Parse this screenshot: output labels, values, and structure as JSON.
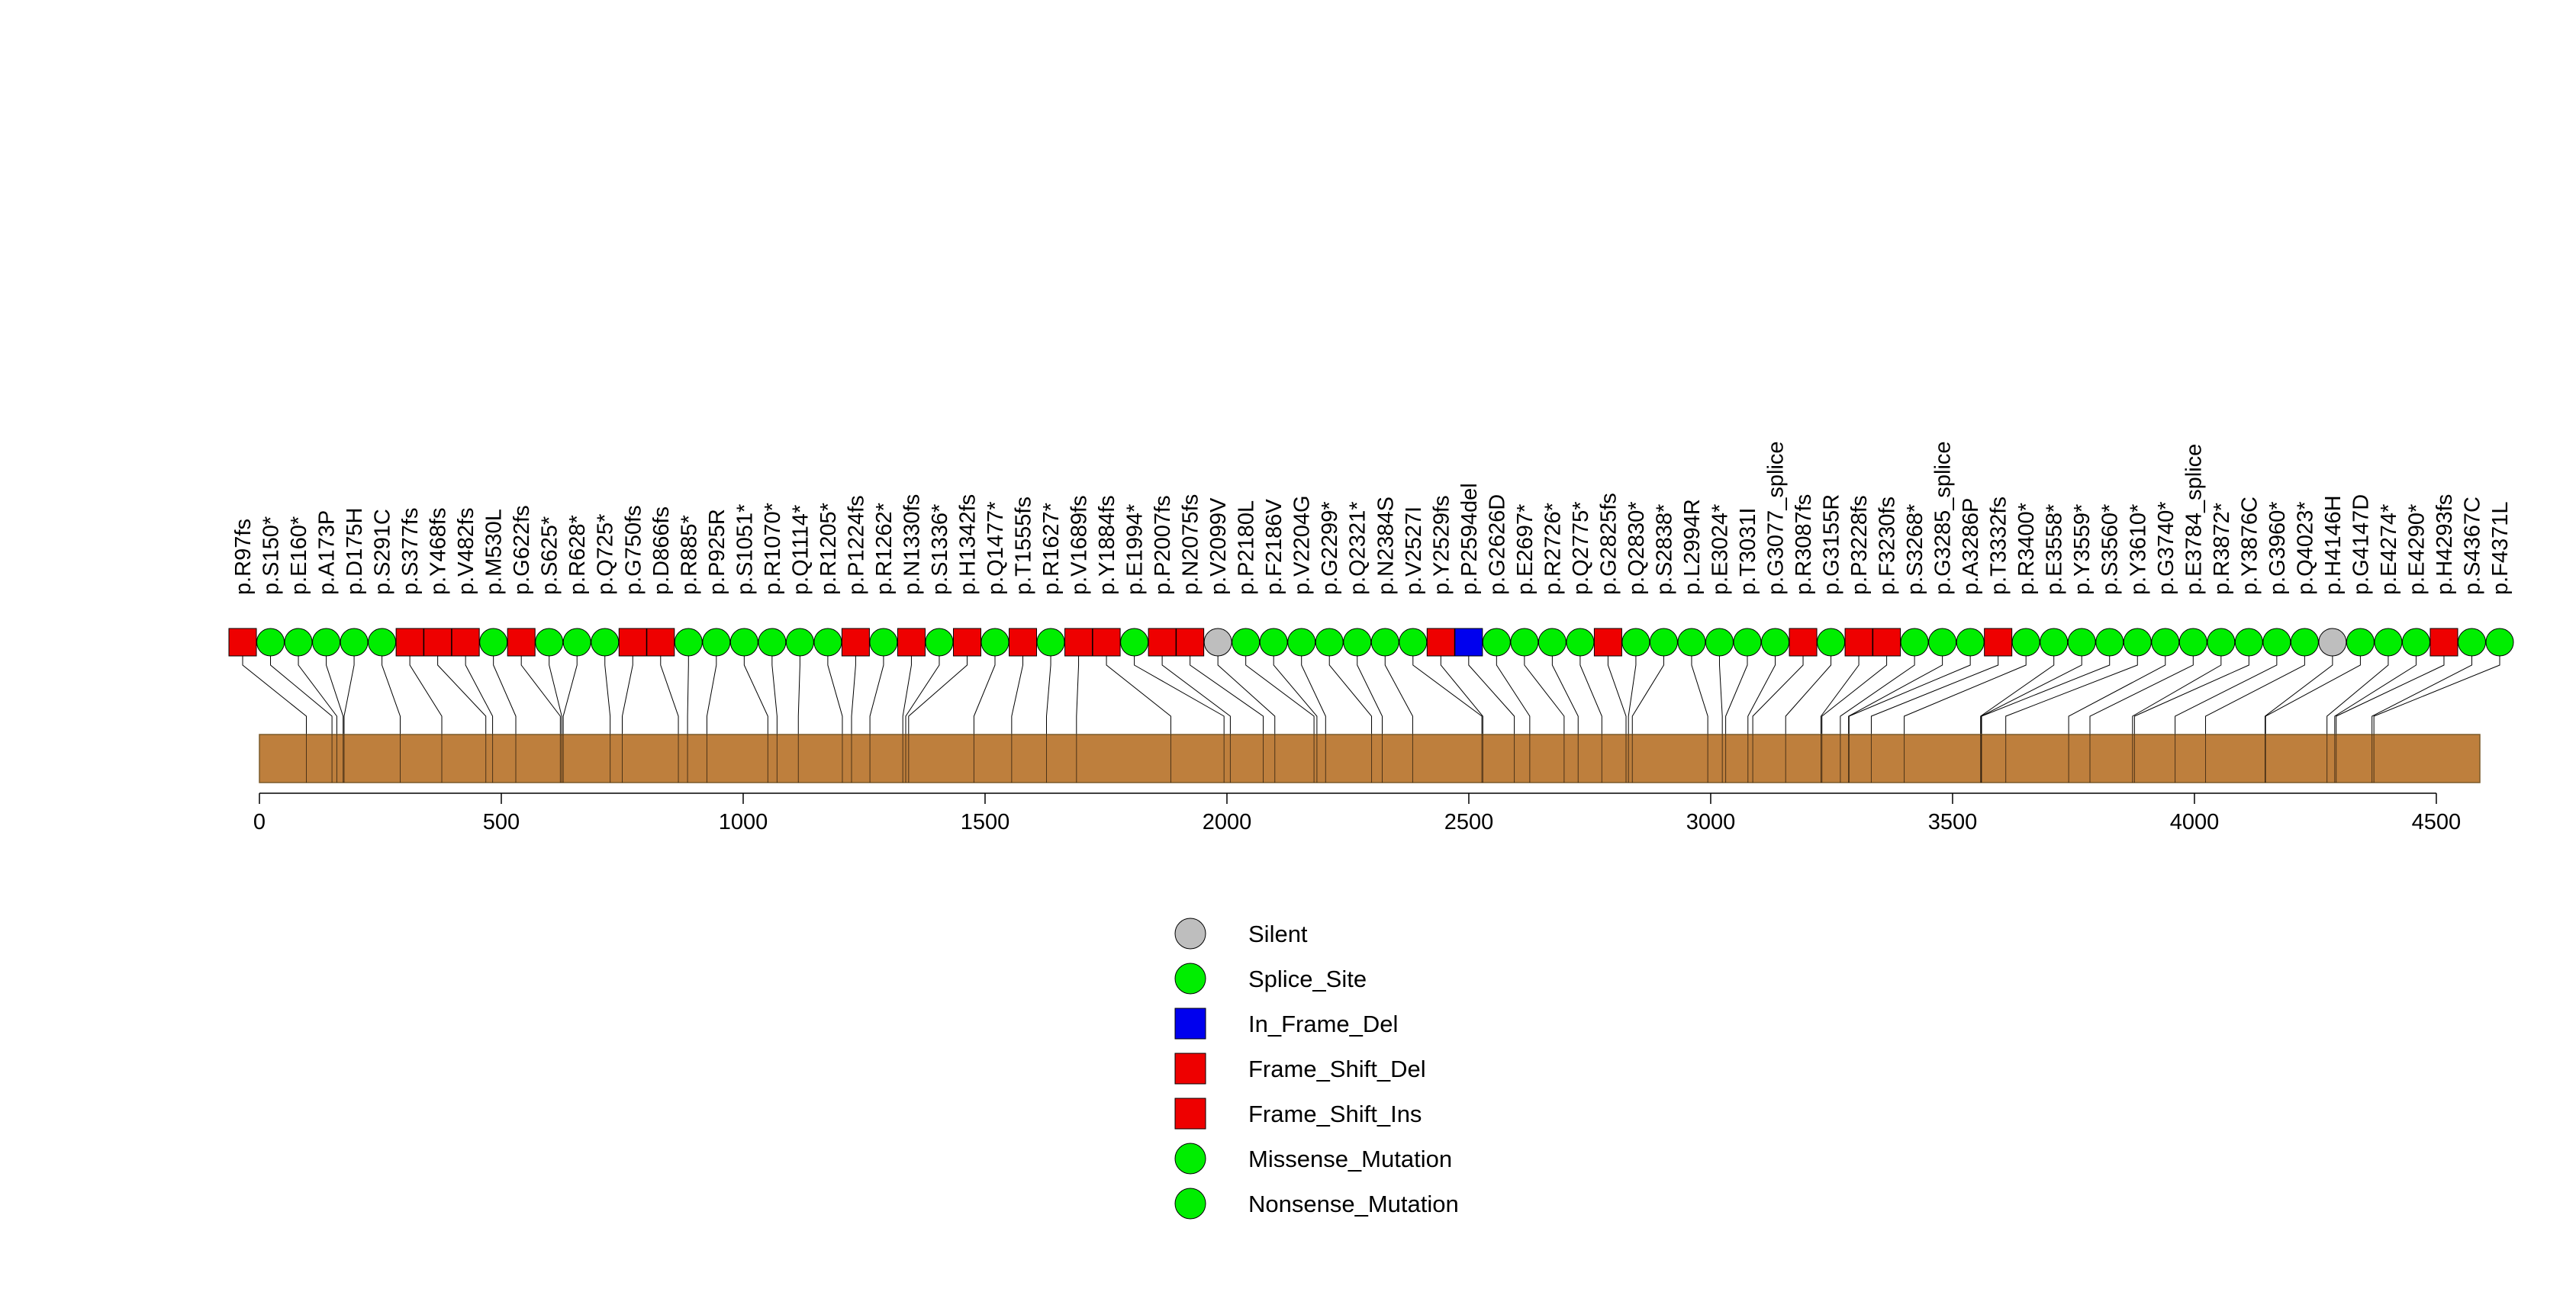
{
  "chart_data": {
    "type": "lollipop",
    "title": "",
    "xlabel": "",
    "ylabel": "",
    "xlim": [
      0,
      4590
    ],
    "protein_length": 4590,
    "x_ticks": [
      0,
      500,
      1000,
      1500,
      2000,
      2500,
      3000,
      3500,
      4000,
      4500
    ],
    "mutation_types": [
      {
        "name": "Silent",
        "shape": "circle",
        "color": "#BEBEBE"
      },
      {
        "name": "Splice_Site",
        "shape": "circle",
        "color": "#00EE00"
      },
      {
        "name": "In_Frame_Del",
        "shape": "square",
        "color": "#0000EE"
      },
      {
        "name": "Frame_Shift_Del",
        "shape": "square",
        "color": "#EE0000"
      },
      {
        "name": "Frame_Shift_Ins",
        "shape": "square",
        "color": "#EE0000"
      },
      {
        "name": "Missense_Mutation",
        "shape": "circle",
        "color": "#00EE00"
      },
      {
        "name": "Nonsense_Mutation",
        "shape": "circle",
        "color": "#00EE00"
      }
    ],
    "legend": [
      "Silent",
      "Splice_Site",
      "In_Frame_Del",
      "Frame_Shift_Del",
      "Frame_Shift_Ins",
      "Missense_Mutation",
      "Nonsense_Mutation"
    ],
    "legend_position": "bottom-center",
    "mutations": [
      {
        "label": "p.R97fs",
        "pos": 97,
        "type": "Frame_Shift_Del"
      },
      {
        "label": "p.S150*",
        "pos": 150,
        "type": "Nonsense_Mutation"
      },
      {
        "label": "p.E160*",
        "pos": 160,
        "type": "Nonsense_Mutation"
      },
      {
        "label": "p.A173P",
        "pos": 173,
        "type": "Missense_Mutation"
      },
      {
        "label": "p.D175H",
        "pos": 175,
        "type": "Missense_Mutation"
      },
      {
        "label": "p.S291C",
        "pos": 291,
        "type": "Missense_Mutation"
      },
      {
        "label": "p.S377fs",
        "pos": 377,
        "type": "Frame_Shift_Del"
      },
      {
        "label": "p.Y468fs",
        "pos": 468,
        "type": "Frame_Shift_Ins"
      },
      {
        "label": "p.V482fs",
        "pos": 482,
        "type": "Frame_Shift_Del"
      },
      {
        "label": "p.M530L",
        "pos": 530,
        "type": "Missense_Mutation"
      },
      {
        "label": "p.G622fs",
        "pos": 622,
        "type": "Frame_Shift_Del"
      },
      {
        "label": "p.S625*",
        "pos": 625,
        "type": "Nonsense_Mutation"
      },
      {
        "label": "p.R628*",
        "pos": 628,
        "type": "Nonsense_Mutation"
      },
      {
        "label": "p.Q725*",
        "pos": 725,
        "type": "Nonsense_Mutation"
      },
      {
        "label": "p.G750fs",
        "pos": 750,
        "type": "Frame_Shift_Del"
      },
      {
        "label": "p.D866fs",
        "pos": 866,
        "type": "Frame_Shift_Del"
      },
      {
        "label": "p.R885*",
        "pos": 885,
        "type": "Nonsense_Mutation"
      },
      {
        "label": "p.P925R",
        "pos": 925,
        "type": "Missense_Mutation"
      },
      {
        "label": "p.S1051*",
        "pos": 1051,
        "type": "Nonsense_Mutation"
      },
      {
        "label": "p.R1070*",
        "pos": 1070,
        "type": "Nonsense_Mutation"
      },
      {
        "label": "p.Q1114*",
        "pos": 1114,
        "type": "Nonsense_Mutation"
      },
      {
        "label": "p.R1205*",
        "pos": 1205,
        "type": "Nonsense_Mutation"
      },
      {
        "label": "p.P1224fs",
        "pos": 1224,
        "type": "Frame_Shift_Del"
      },
      {
        "label": "p.R1262*",
        "pos": 1262,
        "type": "Nonsense_Mutation"
      },
      {
        "label": "p.N1330fs",
        "pos": 1330,
        "type": "Frame_Shift_Del"
      },
      {
        "label": "p.S1336*",
        "pos": 1336,
        "type": "Nonsense_Mutation"
      },
      {
        "label": "p.H1342fs",
        "pos": 1342,
        "type": "Frame_Shift_Del"
      },
      {
        "label": "p.Q1477*",
        "pos": 1477,
        "type": "Nonsense_Mutation"
      },
      {
        "label": "p.T1555fs",
        "pos": 1555,
        "type": "Frame_Shift_Del"
      },
      {
        "label": "p.R1627*",
        "pos": 1627,
        "type": "Nonsense_Mutation"
      },
      {
        "label": "p.V1689fs",
        "pos": 1689,
        "type": "Frame_Shift_Del"
      },
      {
        "label": "p.Y1884fs",
        "pos": 1884,
        "type": "Frame_Shift_Ins"
      },
      {
        "label": "p.E1994*",
        "pos": 1994,
        "type": "Nonsense_Mutation"
      },
      {
        "label": "p.P2007fs",
        "pos": 2007,
        "type": "Frame_Shift_Del"
      },
      {
        "label": "p.N2075fs",
        "pos": 2075,
        "type": "Frame_Shift_Del"
      },
      {
        "label": "p.V2099V",
        "pos": 2099,
        "type": "Silent"
      },
      {
        "label": "p.P2180L",
        "pos": 2180,
        "type": "Missense_Mutation"
      },
      {
        "label": "p.F2186V",
        "pos": 2186,
        "type": "Missense_Mutation"
      },
      {
        "label": "p.V2204G",
        "pos": 2204,
        "type": "Missense_Mutation"
      },
      {
        "label": "p.G2299*",
        "pos": 2299,
        "type": "Nonsense_Mutation"
      },
      {
        "label": "p.Q2321*",
        "pos": 2321,
        "type": "Nonsense_Mutation"
      },
      {
        "label": "p.N2384S",
        "pos": 2384,
        "type": "Missense_Mutation"
      },
      {
        "label": "p.V2527I",
        "pos": 2527,
        "type": "Missense_Mutation"
      },
      {
        "label": "p.Y2529fs",
        "pos": 2529,
        "type": "Frame_Shift_Del"
      },
      {
        "label": "p.P2594del",
        "pos": 2594,
        "type": "In_Frame_Del"
      },
      {
        "label": "p.G2626D",
        "pos": 2626,
        "type": "Missense_Mutation"
      },
      {
        "label": "p.E2697*",
        "pos": 2697,
        "type": "Nonsense_Mutation"
      },
      {
        "label": "p.R2726*",
        "pos": 2726,
        "type": "Nonsense_Mutation"
      },
      {
        "label": "p.Q2775*",
        "pos": 2775,
        "type": "Nonsense_Mutation"
      },
      {
        "label": "p.G2825fs",
        "pos": 2825,
        "type": "Frame_Shift_Del"
      },
      {
        "label": "p.Q2830*",
        "pos": 2830,
        "type": "Nonsense_Mutation"
      },
      {
        "label": "p.S2838*",
        "pos": 2838,
        "type": "Nonsense_Mutation"
      },
      {
        "label": "p.L2994R",
        "pos": 2994,
        "type": "Missense_Mutation"
      },
      {
        "label": "p.E3024*",
        "pos": 3024,
        "type": "Nonsense_Mutation"
      },
      {
        "label": "p.T3031I",
        "pos": 3031,
        "type": "Missense_Mutation"
      },
      {
        "label": "p.G3077_splice",
        "pos": 3077,
        "type": "Splice_Site"
      },
      {
        "label": "p.R3087fs",
        "pos": 3087,
        "type": "Frame_Shift_Del"
      },
      {
        "label": "p.G3155R",
        "pos": 3155,
        "type": "Missense_Mutation"
      },
      {
        "label": "p.P3228fs",
        "pos": 3228,
        "type": "Frame_Shift_Del"
      },
      {
        "label": "p.F3230fs",
        "pos": 3230,
        "type": "Frame_Shift_Del"
      },
      {
        "label": "p.S3268*",
        "pos": 3268,
        "type": "Nonsense_Mutation"
      },
      {
        "label": "p.G3285_splice",
        "pos": 3285,
        "type": "Splice_Site"
      },
      {
        "label": "p.A3286P",
        "pos": 3286,
        "type": "Missense_Mutation"
      },
      {
        "label": "p.T3332fs",
        "pos": 3332,
        "type": "Frame_Shift_Del"
      },
      {
        "label": "p.R3400*",
        "pos": 3400,
        "type": "Nonsense_Mutation"
      },
      {
        "label": "p.E3558*",
        "pos": 3558,
        "type": "Nonsense_Mutation"
      },
      {
        "label": "p.Y3559*",
        "pos": 3559,
        "type": "Nonsense_Mutation"
      },
      {
        "label": "p.S3560*",
        "pos": 3560,
        "type": "Nonsense_Mutation"
      },
      {
        "label": "p.Y3610*",
        "pos": 3610,
        "type": "Nonsense_Mutation"
      },
      {
        "label": "p.G3740*",
        "pos": 3740,
        "type": "Nonsense_Mutation"
      },
      {
        "label": "p.E3784_splice",
        "pos": 3784,
        "type": "Splice_Site"
      },
      {
        "label": "p.R3872*",
        "pos": 3872,
        "type": "Nonsense_Mutation"
      },
      {
        "label": "p.Y3876C",
        "pos": 3876,
        "type": "Missense_Mutation"
      },
      {
        "label": "p.G3960*",
        "pos": 3960,
        "type": "Nonsense_Mutation"
      },
      {
        "label": "p.Q4023*",
        "pos": 4023,
        "type": "Nonsense_Mutation"
      },
      {
        "label": "p.H4146H",
        "pos": 4146,
        "type": "Silent"
      },
      {
        "label": "p.G4147D",
        "pos": 4147,
        "type": "Missense_Mutation"
      },
      {
        "label": "p.E4274*",
        "pos": 4274,
        "type": "Nonsense_Mutation"
      },
      {
        "label": "p.E4290*",
        "pos": 4290,
        "type": "Nonsense_Mutation"
      },
      {
        "label": "p.H4293fs",
        "pos": 4293,
        "type": "Frame_Shift_Del"
      },
      {
        "label": "p.S4367C",
        "pos": 4367,
        "type": "Missense_Mutation"
      },
      {
        "label": "p.F4371L",
        "pos": 4371,
        "type": "Missense_Mutation"
      }
    ]
  }
}
